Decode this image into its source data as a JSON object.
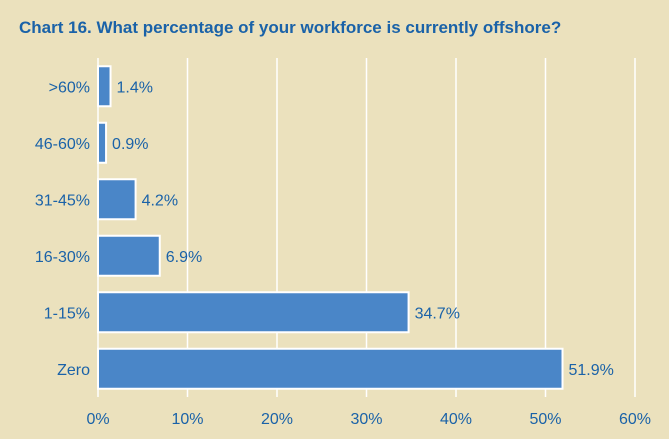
{
  "chart_data": {
    "type": "bar",
    "orientation": "horizontal",
    "title": "Chart 16. What percentage of your workforce is currently offshore?",
    "categories": [
      ">60%",
      "46-60%",
      "31-45%",
      "16-30%",
      "1-15%",
      "Zero"
    ],
    "values": [
      1.4,
      0.9,
      4.2,
      6.9,
      34.7,
      51.9
    ],
    "value_labels": [
      "1.4%",
      "0.9%",
      "4.2%",
      "6.9%",
      "34.7%",
      "51.9%"
    ],
    "xlim": [
      0,
      60
    ],
    "x_ticks": [
      0,
      10,
      20,
      30,
      40,
      50,
      60
    ],
    "x_tick_labels": [
      "0%",
      "10%",
      "20%",
      "30%",
      "40%",
      "50%",
      "60%"
    ],
    "grid": "vertical",
    "bar_color": "#4a86c8",
    "text_color": "#1a62a8",
    "background_color": "#ebe1bd"
  }
}
